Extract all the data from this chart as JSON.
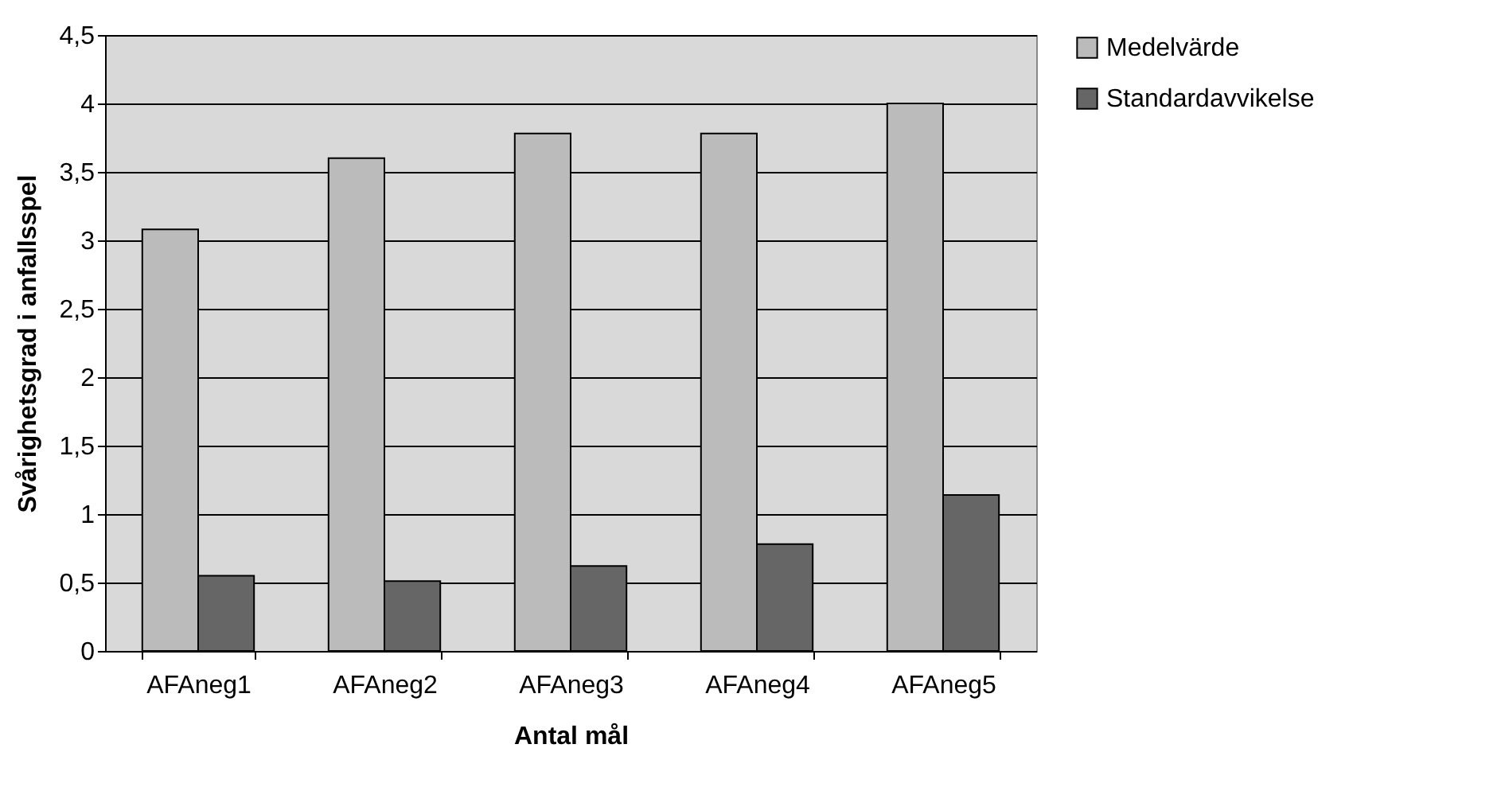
{
  "chart_data": {
    "type": "bar",
    "xlabel": "Antal mål",
    "ylabel": "Svårighetsgrad i anfallsspel",
    "categories": [
      "AFAneg1",
      "AFAneg2",
      "AFAneg3",
      "AFAneg4",
      "AFAneg5"
    ],
    "series": [
      {
        "name": "Medelvärde",
        "color": "#bbbbbb",
        "values": [
          3.08,
          3.6,
          3.78,
          3.78,
          4.0
        ]
      },
      {
        "name": "Standardavvikelse",
        "color": "#666666",
        "values": [
          0.55,
          0.51,
          0.62,
          0.78,
          1.14
        ]
      }
    ],
    "ylim": [
      0,
      4.5
    ],
    "yticks": [
      0,
      {
        "value": 0.5,
        "label": "0,5"
      },
      1,
      {
        "value": 1.5,
        "label": "1,5"
      },
      2,
      {
        "value": 2.5,
        "label": "2,5"
      },
      3,
      {
        "value": 3.5,
        "label": "3,5"
      },
      4,
      {
        "value": 4.5,
        "label": "4,5"
      }
    ],
    "grid": "y",
    "legend": "right"
  }
}
